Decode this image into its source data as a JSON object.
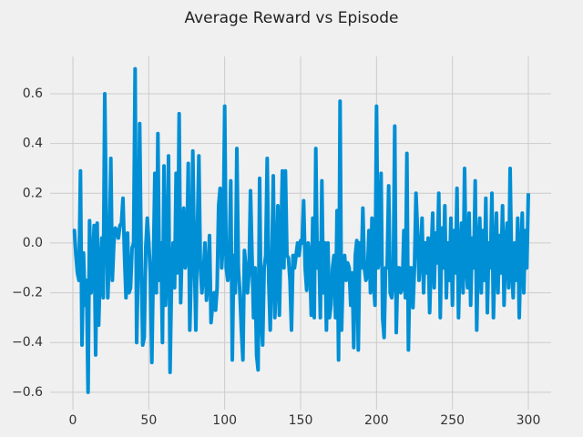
{
  "chart_data": {
    "type": "line",
    "title": "Average Reward vs Episode",
    "x": [
      0,
      1,
      2,
      3,
      4,
      5,
      6,
      7,
      8,
      9,
      10,
      11,
      12,
      13,
      14,
      15,
      16,
      17,
      18,
      19,
      20,
      21,
      22,
      23,
      24,
      25,
      26,
      27,
      28,
      29,
      30,
      31,
      32,
      33,
      34,
      35,
      36,
      37,
      38,
      39,
      40,
      41,
      42,
      43,
      44,
      45,
      46,
      47,
      48,
      49,
      50,
      51,
      52,
      53,
      54,
      55,
      56,
      57,
      58,
      59,
      60,
      61,
      62,
      63,
      64,
      65,
      66,
      67,
      68,
      69,
      70,
      71,
      72,
      73,
      74,
      75,
      76,
      77,
      78,
      79,
      80,
      81,
      82,
      83,
      84,
      85,
      86,
      87,
      88,
      89,
      90,
      91,
      92,
      93,
      94,
      95,
      96,
      97,
      98,
      99,
      100,
      101,
      102,
      103,
      104,
      105,
      106,
      107,
      108,
      109,
      110,
      111,
      112,
      113,
      114,
      115,
      116,
      117,
      118,
      119,
      120,
      121,
      122,
      123,
      124,
      125,
      126,
      127,
      128,
      129,
      130,
      131,
      132,
      133,
      134,
      135,
      136,
      137,
      138,
      139,
      140,
      141,
      142,
      143,
      144,
      145,
      146,
      147,
      148,
      149,
      150,
      151,
      152,
      153,
      154,
      155,
      156,
      157,
      158,
      159,
      160,
      161,
      162,
      163,
      164,
      165,
      166,
      167,
      168,
      169,
      170,
      171,
      172,
      173,
      174,
      175,
      176,
      177,
      178,
      179,
      180,
      181,
      182,
      183,
      184,
      185,
      186,
      187,
      188,
      189,
      190,
      191,
      192,
      193,
      194,
      195,
      196,
      197,
      198,
      199,
      200,
      201,
      202,
      203,
      204,
      205,
      206,
      207,
      208,
      209,
      210,
      211,
      212,
      213,
      214,
      215,
      216,
      217,
      218,
      219,
      220,
      221,
      222,
      223,
      224,
      225,
      226,
      227,
      228,
      229,
      230,
      231,
      232,
      233,
      234,
      235,
      236,
      237,
      238,
      239,
      240,
      241,
      242,
      243,
      244,
      245,
      246,
      247,
      248,
      249,
      250,
      251,
      252,
      253,
      254,
      255,
      256,
      257,
      258,
      259,
      260,
      261,
      262,
      263,
      264,
      265,
      266,
      267,
      268,
      269,
      270,
      271,
      272,
      273,
      274,
      275,
      276,
      277,
      278,
      279,
      280,
      281,
      282,
      283,
      284,
      285,
      286,
      287,
      288,
      289,
      290,
      291,
      292,
      293,
      294,
      295,
      296,
      297,
      298,
      299,
      300
    ],
    "series": [
      {
        "color": "#008fd5",
        "values": [
          0.05,
          0.05,
          -0.05,
          -0.12,
          -0.15,
          0.29,
          -0.41,
          -0.04,
          -0.25,
          -0.15,
          -0.6,
          0.09,
          -0.2,
          -0.1,
          0.07,
          -0.45,
          0.08,
          -0.33,
          -0.1,
          0.02,
          -0.22,
          0.6,
          0.1,
          -0.22,
          -0.05,
          0.34,
          -0.15,
          0.0,
          0.06,
          0.05,
          0.02,
          0.07,
          0.08,
          0.18,
          -0.05,
          -0.22,
          0.04,
          -0.2,
          -0.18,
          -0.02,
          0.0,
          0.7,
          -0.4,
          -0.1,
          0.48,
          -0.05,
          -0.41,
          -0.38,
          -0.02,
          0.1,
          0.0,
          -0.12,
          -0.48,
          -0.1,
          0.28,
          -0.2,
          0.44,
          -0.15,
          0.0,
          -0.4,
          0.31,
          -0.25,
          -0.1,
          0.35,
          -0.52,
          -0.15,
          0.0,
          -0.18,
          0.28,
          -0.12,
          0.52,
          -0.24,
          0.0,
          0.14,
          -0.1,
          -0.05,
          0.32,
          -0.35,
          -0.1,
          0.37,
          -0.05,
          -0.35,
          0.05,
          0.35,
          -0.1,
          -0.2,
          -0.12,
          0.0,
          -0.23,
          -0.15,
          0.03,
          -0.32,
          -0.25,
          -0.2,
          -0.27,
          -0.18,
          0.15,
          0.22,
          -0.1,
          0.0,
          0.55,
          -0.1,
          -0.15,
          -0.08,
          0.25,
          -0.47,
          -0.05,
          -0.2,
          0.38,
          -0.1,
          -0.2,
          -0.35,
          -0.47,
          -0.03,
          -0.1,
          -0.2,
          -0.12,
          0.21,
          -0.05,
          -0.3,
          -0.1,
          -0.45,
          -0.51,
          0.26,
          -0.3,
          -0.41,
          -0.1,
          -0.05,
          0.34,
          -0.15,
          -0.35,
          -0.1,
          0.27,
          -0.3,
          -0.15,
          0.15,
          -0.29,
          0.0,
          0.29,
          -0.1,
          0.29,
          -0.05,
          -0.06,
          -0.15,
          -0.35,
          -0.05,
          -0.1,
          -0.05,
          0.0,
          -0.05,
          0.01,
          0.0,
          0.17,
          -0.1,
          -0.19,
          0.0,
          -0.05,
          -0.29,
          0.1,
          -0.3,
          0.38,
          -0.1,
          0.0,
          -0.3,
          0.25,
          -0.2,
          0.0,
          -0.35,
          0.0,
          -0.3,
          -0.25,
          -0.1,
          -0.05,
          -0.3,
          0.13,
          -0.47,
          0.57,
          -0.35,
          -0.1,
          -0.05,
          -0.15,
          -0.08,
          -0.1,
          -0.25,
          -0.12,
          -0.42,
          -0.05,
          0.01,
          -0.43,
          0.0,
          -0.1,
          0.14,
          -0.1,
          -0.15,
          -0.13,
          0.05,
          -0.2,
          0.1,
          -0.15,
          -0.25,
          0.55,
          -0.1,
          -0.05,
          0.28,
          -0.3,
          -0.38,
          -0.1,
          -0.1,
          0.23,
          -0.2,
          -0.22,
          -0.15,
          0.47,
          -0.36,
          -0.1,
          -0.1,
          -0.2,
          -0.18,
          0.05,
          -0.22,
          0.36,
          -0.43,
          -0.1,
          -0.1,
          -0.26,
          -0.1,
          0.2,
          0.05,
          -0.15,
          -0.05,
          0.1,
          -0.2,
          0.0,
          -0.12,
          0.02,
          -0.28,
          -0.05,
          0.12,
          -0.18,
          0.04,
          -0.08,
          0.2,
          -0.3,
          0.06,
          -0.1,
          0.15,
          -0.22,
          0.0,
          -0.15,
          0.1,
          -0.25,
          0.05,
          -0.12,
          0.22,
          -0.3,
          -0.05,
          0.08,
          -0.2,
          0.3,
          -0.1,
          -0.18,
          0.12,
          -0.25,
          0.02,
          -0.1,
          0.25,
          -0.35,
          -0.02,
          0.1,
          -0.2,
          0.05,
          -0.15,
          0.18,
          -0.28,
          0.0,
          -0.1,
          0.2,
          -0.3,
          -0.05,
          0.12,
          -0.2,
          0.03,
          -0.12,
          0.15,
          -0.25,
          -0.02,
          0.08,
          -0.18,
          0.3,
          -0.1,
          -0.22,
          0.0,
          -0.15,
          0.1,
          -0.3,
          -0.05,
          0.12,
          -0.2,
          0.05,
          -0.1,
          0.2
        ]
      }
    ],
    "xlim": [
      -15,
      315
    ],
    "ylim": [
      -0.67,
      0.75
    ],
    "xticks": [
      0,
      50,
      100,
      150,
      200,
      250,
      300
    ],
    "yticks": [
      {
        "value": -0.6,
        "label": "−0.6"
      },
      {
        "value": -0.4,
        "label": "−0.4"
      },
      {
        "value": -0.2,
        "label": "−0.2"
      },
      {
        "value": 0,
        "label": "0.0"
      },
      0.2,
      0.4,
      0.6
    ],
    "grid": true
  }
}
